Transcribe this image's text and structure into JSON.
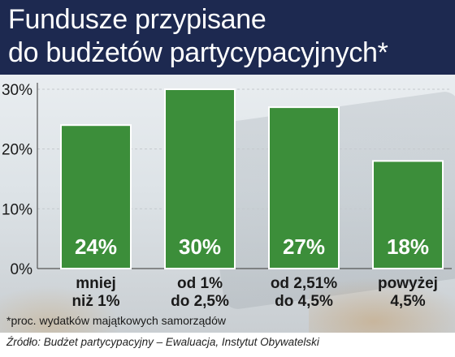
{
  "chart_data": {
    "type": "bar",
    "title_lines": [
      "Fundusze przypisane",
      "do budżetów partycypacyjnych*"
    ],
    "categories": [
      [
        "mniej",
        "niż 1%"
      ],
      [
        "od 1%",
        "do 2,5%"
      ],
      [
        "od 2,51%",
        "do 4,5%"
      ],
      [
        "powyżej",
        "4,5%"
      ]
    ],
    "values": [
      24,
      30,
      27,
      18
    ],
    "value_labels": [
      "24%",
      "30%",
      "27%",
      "18%"
    ],
    "ylim": [
      0,
      30
    ],
    "yticks": [
      0,
      10,
      20,
      30
    ],
    "ytick_labels": [
      "0%",
      "10%",
      "20%",
      "30%"
    ],
    "bar_color": "#3c8e3a",
    "grid": true
  },
  "footnote": "*proc. wydatków majątkowych samorządów",
  "source": "Źródło: Budżet partycypacyjny – Ewaluacja, Instytut Obywatelski"
}
